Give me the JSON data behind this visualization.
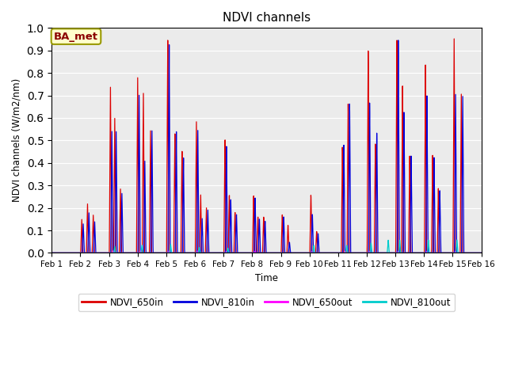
{
  "title": "NDVI channels",
  "ylabel": "NDVI channels (W/m2/nm)",
  "xlabel": "Time",
  "annotation": "BA_met",
  "xlim": [
    0,
    15
  ],
  "ylim": [
    0,
    1.0
  ],
  "yticks": [
    0.0,
    0.1,
    0.2,
    0.3,
    0.4,
    0.5,
    0.6,
    0.7,
    0.8,
    0.9,
    1.0
  ],
  "xtick_labels": [
    "Feb 1",
    "Feb 2",
    "Feb 3",
    "Feb 4",
    "Feb 5",
    "Feb 6",
    "Feb 7",
    "Feb 8",
    "Feb 9",
    "Feb 10",
    "Feb 11",
    "Feb 12",
    "Feb 13",
    "Feb 14",
    "Feb 15",
    "Feb 16"
  ],
  "colors": {
    "NDVI_650in": "#dd0000",
    "NDVI_810in": "#0000dd",
    "NDVI_650out": "#ff00ff",
    "NDVI_810out": "#00cccc"
  },
  "background_color": "#ebebeb",
  "grid_color": "#ffffff",
  "peaks_650in": [
    [
      1.05,
      0.15
    ],
    [
      1.25,
      0.22
    ],
    [
      1.45,
      0.17
    ],
    [
      2.05,
      0.75
    ],
    [
      2.2,
      0.61
    ],
    [
      2.4,
      0.29
    ],
    [
      3.0,
      0.8
    ],
    [
      3.2,
      0.73
    ],
    [
      3.45,
      0.56
    ],
    [
      4.05,
      0.98
    ],
    [
      4.3,
      0.55
    ],
    [
      4.55,
      0.47
    ],
    [
      5.05,
      0.61
    ],
    [
      5.2,
      0.27
    ],
    [
      5.4,
      0.21
    ],
    [
      6.05,
      0.53
    ],
    [
      6.2,
      0.27
    ],
    [
      6.4,
      0.19
    ],
    [
      7.05,
      0.27
    ],
    [
      7.2,
      0.17
    ],
    [
      7.4,
      0.17
    ],
    [
      8.05,
      0.18
    ],
    [
      8.25,
      0.13
    ],
    [
      9.05,
      0.27
    ],
    [
      9.25,
      0.1
    ],
    [
      10.15,
      0.49
    ],
    [
      10.35,
      0.69
    ],
    [
      11.05,
      0.93
    ],
    [
      11.3,
      0.5
    ],
    [
      12.05,
      0.97
    ],
    [
      12.25,
      0.76
    ],
    [
      12.5,
      0.44
    ],
    [
      13.05,
      0.85
    ],
    [
      13.3,
      0.44
    ],
    [
      13.5,
      0.29
    ],
    [
      14.05,
      0.96
    ],
    [
      14.3,
      0.71
    ]
  ],
  "peaks_810in": [
    [
      1.1,
      0.13
    ],
    [
      1.3,
      0.18
    ],
    [
      1.5,
      0.14
    ],
    [
      2.1,
      0.55
    ],
    [
      2.25,
      0.55
    ],
    [
      2.45,
      0.27
    ],
    [
      3.05,
      0.72
    ],
    [
      3.25,
      0.42
    ],
    [
      3.5,
      0.56
    ],
    [
      4.1,
      0.96
    ],
    [
      4.35,
      0.56
    ],
    [
      4.6,
      0.44
    ],
    [
      5.1,
      0.57
    ],
    [
      5.25,
      0.16
    ],
    [
      5.45,
      0.2
    ],
    [
      6.1,
      0.5
    ],
    [
      6.25,
      0.25
    ],
    [
      6.45,
      0.18
    ],
    [
      7.1,
      0.26
    ],
    [
      7.25,
      0.16
    ],
    [
      7.45,
      0.15
    ],
    [
      8.1,
      0.17
    ],
    [
      8.3,
      0.05
    ],
    [
      9.1,
      0.18
    ],
    [
      9.3,
      0.09
    ],
    [
      10.2,
      0.5
    ],
    [
      10.4,
      0.69
    ],
    [
      11.1,
      0.69
    ],
    [
      11.35,
      0.55
    ],
    [
      12.1,
      0.97
    ],
    [
      12.3,
      0.64
    ],
    [
      12.55,
      0.44
    ],
    [
      13.1,
      0.71
    ],
    [
      13.35,
      0.43
    ],
    [
      13.55,
      0.28
    ],
    [
      14.1,
      0.71
    ],
    [
      14.35,
      0.7
    ]
  ],
  "peaks_650out": [
    [
      2.15,
      0.01
    ],
    [
      3.1,
      0.01
    ],
    [
      4.1,
      0.01
    ],
    [
      5.1,
      0.01
    ],
    [
      6.1,
      0.008
    ],
    [
      7.1,
      0.008
    ],
    [
      9.1,
      0.008
    ],
    [
      10.25,
      0.008
    ],
    [
      11.1,
      0.008
    ],
    [
      12.1,
      0.008
    ],
    [
      13.1,
      0.008
    ],
    [
      14.1,
      0.008
    ]
  ],
  "peaks_810out": [
    [
      2.2,
      0.03
    ],
    [
      3.15,
      0.035
    ],
    [
      4.15,
      0.04
    ],
    [
      5.15,
      0.025
    ],
    [
      6.15,
      0.022
    ],
    [
      9.15,
      0.035
    ],
    [
      10.3,
      0.035
    ],
    [
      11.15,
      0.045
    ],
    [
      11.75,
      0.058
    ],
    [
      12.15,
      0.058
    ],
    [
      13.15,
      0.058
    ],
    [
      14.15,
      0.058
    ]
  ]
}
